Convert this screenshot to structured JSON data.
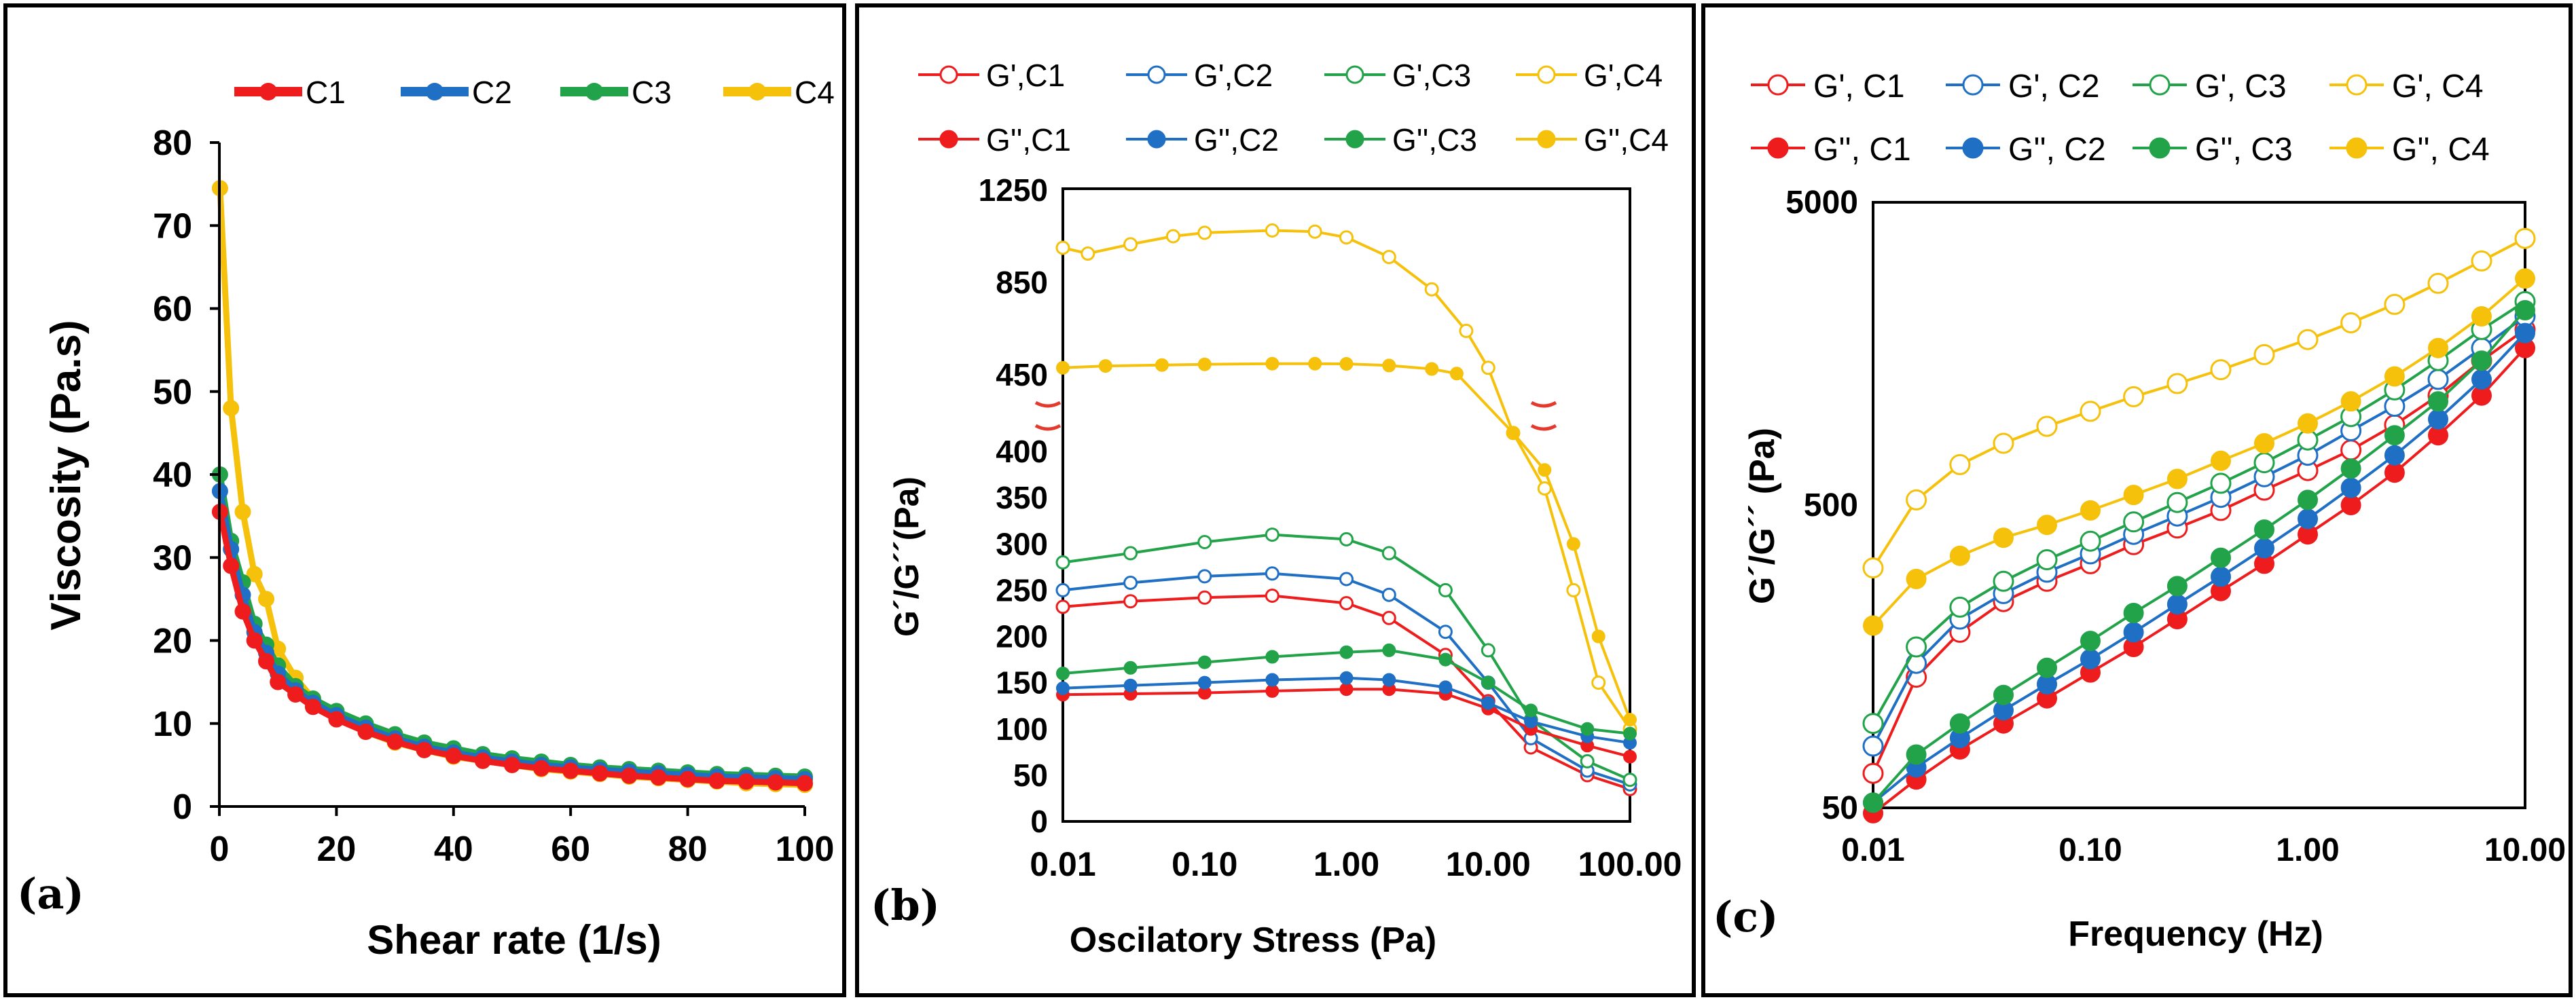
{
  "colors": {
    "C1": "#ee1c1c",
    "C2": "#1f6fc5",
    "C3": "#22a34a",
    "C4": "#f5c10a",
    "break": "#e43a2e"
  },
  "chart_data": [
    {
      "id": "a",
      "panel_label": "(a)",
      "type": "line",
      "xlabel": "Shear rate (1/s)",
      "ylabel": "Viscosity (Pa.s)",
      "xlim": [
        0,
        100
      ],
      "ylim": [
        0,
        80
      ],
      "xticks": [
        0,
        20,
        40,
        60,
        80,
        100
      ],
      "yticks": [
        0,
        10,
        20,
        30,
        40,
        50,
        60,
        70,
        80
      ],
      "legend": [
        "C1",
        "C2",
        "C3",
        "C4"
      ],
      "x": [
        0.1,
        2,
        4,
        6,
        8,
        10,
        13,
        16,
        20,
        25,
        30,
        35,
        40,
        45,
        50,
        55,
        60,
        65,
        70,
        75,
        80,
        85,
        90,
        95,
        100
      ],
      "series": [
        {
          "name": "C1",
          "values": [
            35.5,
            29,
            23.5,
            20,
            17.5,
            15,
            13.5,
            12,
            10.5,
            9,
            7.8,
            6.8,
            6.1,
            5.5,
            5.0,
            4.6,
            4.3,
            4.0,
            3.7,
            3.5,
            3.3,
            3.1,
            3.0,
            2.9,
            2.8
          ]
        },
        {
          "name": "C2",
          "values": [
            38,
            31,
            25.5,
            21,
            18.5,
            16,
            14,
            12.5,
            11,
            9.5,
            8.2,
            7.2,
            6.5,
            5.9,
            5.4,
            5.0,
            4.7,
            4.4,
            4.2,
            4.0,
            3.8,
            3.6,
            3.5,
            3.4,
            3.3
          ]
        },
        {
          "name": "C3",
          "values": [
            40,
            32,
            27,
            22,
            19.5,
            17,
            14.5,
            13,
            11.5,
            10,
            8.7,
            7.7,
            7.0,
            6.3,
            5.8,
            5.4,
            5.0,
            4.7,
            4.5,
            4.3,
            4.1,
            3.9,
            3.8,
            3.7,
            3.6
          ]
        },
        {
          "name": "C4",
          "values": [
            74.5,
            48,
            35.5,
            28,
            25,
            19,
            15.5,
            13,
            10.8,
            9,
            7.7,
            6.8,
            6.0,
            5.5,
            5.0,
            4.5,
            4.2,
            3.9,
            3.6,
            3.4,
            3.2,
            3.0,
            2.8,
            2.7,
            2.6
          ]
        }
      ]
    },
    {
      "id": "b",
      "panel_label": "(b)",
      "type": "line",
      "xlabel": "Oscilatory Stress (Pa)",
      "ylabel": "G´/G´´(Pa)",
      "xscale": "log",
      "xlim": [
        0.01,
        100
      ],
      "xticks": [
        0.01,
        0.1,
        1,
        10,
        100
      ],
      "xtick_labels": [
        "0.01",
        "0.10",
        "1.00",
        "10.00",
        "100.00"
      ],
      "ylim_lower": [
        0,
        430
      ],
      "ylim_upper": [
        440,
        1250
      ],
      "yticks_lower": [
        0,
        50,
        100,
        150,
        200,
        250,
        300,
        350,
        400
      ],
      "yticks_upper": [
        450,
        850,
        1250
      ],
      "y_break": "between 400 and 450 Pa",
      "legend": [
        "G',C1",
        "G',C2",
        "G',C3",
        "G',C4",
        "G'',C1",
        "G'',C2",
        "G'',C3",
        "G'',C4"
      ],
      "series": [
        {
          "name": "G',C1",
          "fill": "open",
          "color": "C1",
          "x": [
            0.01,
            0.03,
            0.1,
            0.3,
            1,
            2,
            5,
            10,
            20,
            50,
            100
          ],
          "values": [
            232,
            238,
            242,
            244,
            236,
            220,
            180,
            130,
            80,
            50,
            35
          ]
        },
        {
          "name": "G',C2",
          "fill": "open",
          "color": "C2",
          "x": [
            0.01,
            0.03,
            0.1,
            0.3,
            1,
            2,
            5,
            10,
            20,
            50,
            100
          ],
          "values": [
            250,
            258,
            265,
            268,
            262,
            245,
            205,
            150,
            90,
            55,
            40
          ]
        },
        {
          "name": "G',C3",
          "fill": "open",
          "color": "C3",
          "x": [
            0.01,
            0.03,
            0.1,
            0.3,
            1,
            2,
            5,
            10,
            20,
            50,
            100
          ],
          "values": [
            280,
            290,
            302,
            310,
            305,
            290,
            250,
            185,
            110,
            65,
            45
          ]
        },
        {
          "name": "G',C4",
          "fill": "open",
          "color": "C4",
          "x": [
            0.01,
            0.015,
            0.03,
            0.06,
            0.1,
            0.3,
            0.6,
            1,
            2,
            4,
            7,
            10,
            15,
            25,
            40,
            60,
            100
          ],
          "values": [
            1000,
            975,
            1015,
            1050,
            1065,
            1075,
            1070,
            1045,
            960,
            820,
            640,
            480,
            420,
            360,
            250,
            150,
            100
          ]
        },
        {
          "name": "G'',C1",
          "fill": "solid",
          "color": "C1",
          "x": [
            0.01,
            0.03,
            0.1,
            0.3,
            1,
            2,
            5,
            10,
            20,
            50,
            100
          ],
          "values": [
            137,
            138,
            139,
            141,
            143,
            143,
            138,
            122,
            100,
            82,
            70
          ]
        },
        {
          "name": "G'',C2",
          "fill": "solid",
          "color": "C2",
          "x": [
            0.01,
            0.03,
            0.1,
            0.3,
            1,
            2,
            5,
            10,
            20,
            50,
            100
          ],
          "values": [
            144,
            147,
            150,
            153,
            155,
            153,
            145,
            128,
            108,
            92,
            85
          ]
        },
        {
          "name": "G'',C3",
          "fill": "solid",
          "color": "C3",
          "x": [
            0.01,
            0.03,
            0.1,
            0.3,
            1,
            2,
            5,
            10,
            20,
            50,
            100
          ],
          "values": [
            160,
            166,
            172,
            178,
            183,
            185,
            175,
            150,
            120,
            100,
            95
          ]
        },
        {
          "name": "G'',C4",
          "fill": "solid",
          "color": "C4",
          "x": [
            0.01,
            0.02,
            0.05,
            0.1,
            0.3,
            0.6,
            1,
            2,
            4,
            6,
            15,
            25,
            40,
            60,
            100
          ],
          "values": [
            480,
            488,
            492,
            495,
            498,
            498,
            497,
            490,
            475,
            455,
            420,
            380,
            300,
            200,
            110
          ]
        }
      ]
    },
    {
      "id": "c",
      "panel_label": "(c)",
      "type": "line",
      "xlabel": "Frequency (Hz)",
      "ylabel": "G´/G´´ (Pa)",
      "xscale": "log",
      "yscale": "log",
      "xlim": [
        0.01,
        10
      ],
      "ylim": [
        50,
        5000
      ],
      "xticks": [
        0.01,
        0.1,
        1,
        10
      ],
      "xtick_labels": [
        "0.01",
        "0.10",
        "1.00",
        "10.00"
      ],
      "yticks": [
        50,
        500,
        5000
      ],
      "legend": [
        "G', C1",
        "G', C2",
        "G', C3",
        "G', C4",
        "G'', C1",
        "G'', C2",
        "G'', C3",
        "G'', C4"
      ],
      "x": [
        0.01,
        0.0158,
        0.0251,
        0.0398,
        0.0631,
        0.1,
        0.158,
        0.251,
        0.398,
        0.631,
        1,
        1.58,
        2.51,
        3.98,
        6.31,
        10
      ],
      "series": [
        {
          "name": "G', C1",
          "fill": "open",
          "color": "C1",
          "values": [
            65,
            135,
            190,
            240,
            280,
            320,
            370,
            420,
            480,
            560,
            650,
            760,
            920,
            1150,
            1500,
            1900
          ]
        },
        {
          "name": "G', C2",
          "fill": "open",
          "color": "C2",
          "values": [
            80,
            150,
            210,
            255,
            300,
            345,
            400,
            460,
            530,
            620,
            730,
            880,
            1060,
            1300,
            1650,
            2100
          ]
        },
        {
          "name": "G', C3",
          "fill": "open",
          "color": "C3",
          "values": [
            95,
            170,
            230,
            280,
            330,
            380,
            440,
            510,
            590,
            690,
            820,
            980,
            1200,
            1500,
            1900,
            2350
          ]
        },
        {
          "name": "G', C4",
          "fill": "open",
          "color": "C4",
          "values": [
            310,
            520,
            680,
            800,
            910,
            1020,
            1140,
            1260,
            1400,
            1570,
            1760,
            2000,
            2300,
            2700,
            3200,
            3800
          ]
        },
        {
          "name": "G'', C1",
          "fill": "solid",
          "color": "C1",
          "values": [
            48,
            62,
            78,
            95,
            115,
            140,
            170,
            210,
            260,
            320,
            400,
            500,
            640,
            850,
            1150,
            1650
          ]
        },
        {
          "name": "G'', C2",
          "fill": "solid",
          "color": "C2",
          "values": [
            52,
            68,
            85,
            105,
            128,
            155,
            190,
            235,
            290,
            360,
            450,
            570,
            730,
            960,
            1300,
            1850
          ]
        },
        {
          "name": "G'', C3",
          "fill": "solid",
          "color": "C3",
          "values": [
            52,
            75,
            95,
            118,
            145,
            178,
            220,
            270,
            335,
            415,
            520,
            660,
            850,
            1100,
            1500,
            2200
          ]
        },
        {
          "name": "G'', C4",
          "fill": "solid",
          "color": "C4",
          "values": [
            200,
            285,
            340,
            390,
            430,
            480,
            540,
            610,
            700,
            800,
            930,
            1100,
            1330,
            1650,
            2100,
            2800
          ]
        }
      ]
    }
  ]
}
